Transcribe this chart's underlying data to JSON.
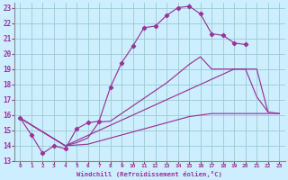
{
  "xlabel": "Windchill (Refroidissement éolien,°C)",
  "bg_color": "#cceeff",
  "grid_color": "#99cccc",
  "line_color": "#993399",
  "xlim": [
    -0.5,
    23.5
  ],
  "ylim": [
    13,
    23.3
  ],
  "yticks": [
    13,
    14,
    15,
    16,
    17,
    18,
    19,
    20,
    21,
    22,
    23
  ],
  "xticks": [
    0,
    1,
    2,
    3,
    4,
    5,
    6,
    7,
    8,
    9,
    10,
    11,
    12,
    13,
    14,
    15,
    16,
    17,
    18,
    19,
    20,
    21,
    22,
    23
  ],
  "series1_x": [
    0,
    1,
    2,
    3,
    4,
    5,
    6,
    7,
    8,
    9,
    10,
    11,
    12,
    13,
    14,
    15,
    16,
    17,
    18,
    19,
    20
  ],
  "series1_y": [
    15.8,
    14.7,
    13.5,
    14.0,
    13.8,
    15.1,
    15.5,
    15.6,
    17.8,
    19.4,
    20.5,
    21.7,
    21.8,
    22.5,
    23.0,
    23.1,
    22.6,
    21.3,
    21.2,
    20.7,
    20.6
  ],
  "series2_x": [
    0,
    4,
    19,
    20,
    21,
    22
  ],
  "series2_y": [
    15.8,
    14.0,
    19.0,
    19.0,
    17.2,
    16.2
  ],
  "series3_x": [
    0,
    4,
    5,
    6,
    7,
    8,
    9,
    10,
    11,
    12,
    13,
    14,
    15,
    16,
    17,
    18,
    19,
    20,
    21,
    22,
    23
  ],
  "series3_y": [
    15.8,
    14.0,
    14.2,
    14.5,
    15.55,
    15.6,
    16.1,
    16.6,
    17.1,
    17.6,
    18.1,
    18.7,
    19.3,
    19.8,
    19.0,
    19.0,
    19.0,
    19.0,
    19.0,
    16.2,
    16.1
  ],
  "series4_x": [
    0,
    4,
    5,
    6,
    7,
    8,
    9,
    10,
    11,
    12,
    13,
    14,
    15,
    16,
    17,
    22,
    23
  ],
  "series4_y": [
    15.8,
    14.0,
    14.05,
    14.1,
    14.3,
    14.5,
    14.7,
    14.9,
    15.1,
    15.3,
    15.5,
    15.7,
    15.9,
    16.0,
    16.1,
    16.1,
    16.1
  ]
}
